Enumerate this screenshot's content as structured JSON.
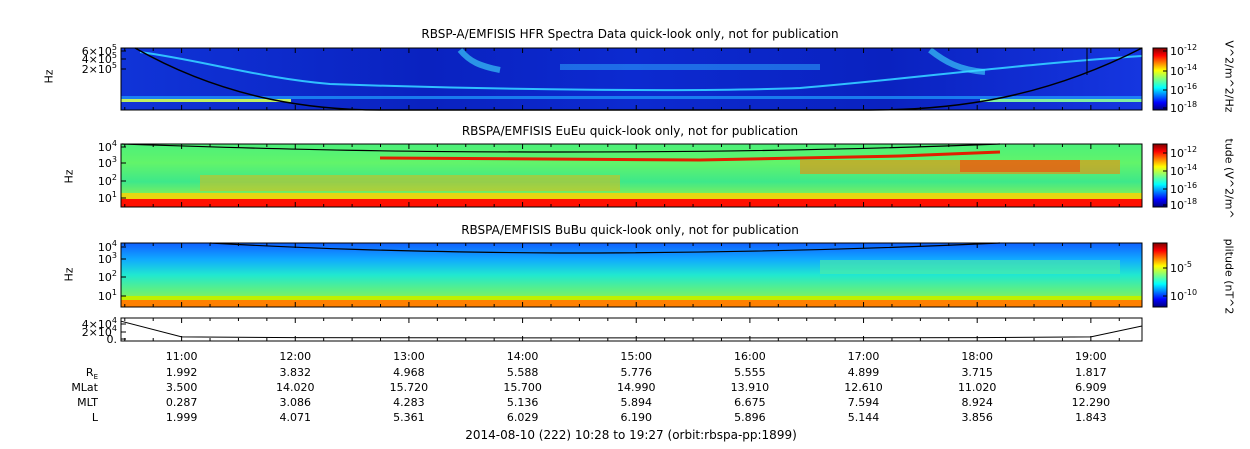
{
  "chart_data": [
    {
      "type": "heatmap",
      "title": "RBSP-A/EMFISIS  HFR Spectra Data quick-look only, not for publication",
      "ylabel": "Hz",
      "y_ticks": [
        {
          "value": 600000,
          "label": "6×10",
          "exp": "5"
        },
        {
          "value": 400000,
          "label": "4×10",
          "exp": "5"
        },
        {
          "value": 200000,
          "label": "2×10",
          "exp": "5"
        }
      ],
      "colorbar_label": "V^2/m^2/Hz",
      "colorbar_ticks": [
        {
          "label": "10",
          "exp": "-12"
        },
        {
          "label": "10",
          "exp": "-14"
        },
        {
          "label": "10",
          "exp": "-16"
        },
        {
          "label": "10",
          "exp": "-18"
        }
      ],
      "log_scale": false
    },
    {
      "type": "heatmap",
      "title": "RBSPA/EMFISIS  EuEu quick-look only, not for publication",
      "ylabel": "Hz",
      "y_ticks": [
        {
          "value": 10000,
          "label": "10",
          "exp": "4"
        },
        {
          "value": 1000,
          "label": "10",
          "exp": "3"
        },
        {
          "value": 100,
          "label": "10",
          "exp": "2"
        },
        {
          "value": 10,
          "label": "10",
          "exp": "1"
        }
      ],
      "colorbar_label": "tude (V^2/m^",
      "colorbar_ticks": [
        {
          "label": "10",
          "exp": "-12"
        },
        {
          "label": "10",
          "exp": "-14"
        },
        {
          "label": "10",
          "exp": "-16"
        },
        {
          "label": "10",
          "exp": "-18"
        }
      ],
      "log_scale": true
    },
    {
      "type": "heatmap",
      "title": "RBSPA/EMFISIS  BuBu quick-look only, not for publication",
      "ylabel": "Hz",
      "y_ticks": [
        {
          "value": 10000,
          "label": "10",
          "exp": "4"
        },
        {
          "value": 1000,
          "label": "10",
          "exp": "3"
        },
        {
          "value": 100,
          "label": "10",
          "exp": "2"
        },
        {
          "value": 10,
          "label": "10",
          "exp": "1"
        }
      ],
      "colorbar_label": "plitude (nT^2",
      "colorbar_ticks": [
        {
          "label": "10",
          "exp": "-5"
        },
        {
          "label": "10",
          "exp": "-10"
        }
      ],
      "log_scale": true
    },
    {
      "type": "line",
      "y_ticks": [
        {
          "value": 40000,
          "label": "4×10",
          "exp": "4"
        },
        {
          "value": 20000,
          "label": "2×10",
          "exp": "4"
        },
        {
          "value": 0,
          "label": "0.",
          "exp": ""
        }
      ],
      "x": [
        "10:28",
        "11:00",
        "12:00",
        "13:00",
        "14:00",
        "15:00",
        "16:00",
        "17:00",
        "18:00",
        "19:00",
        "19:27"
      ],
      "values": [
        42000,
        2800,
        900,
        400,
        250,
        200,
        250,
        400,
        900,
        2800,
        30000
      ]
    }
  ],
  "time_axis": {
    "ticks": [
      "11:00",
      "12:00",
      "13:00",
      "14:00",
      "15:00",
      "16:00",
      "17:00",
      "18:00",
      "19:00"
    ],
    "start_hour": 10.4667,
    "end_hour": 19.45
  },
  "ephemeris": {
    "rows": [
      {
        "label": "R",
        "sub": "E",
        "values": [
          "1.992",
          "3.832",
          "4.968",
          "5.588",
          "5.776",
          "5.555",
          "4.899",
          "3.715",
          "1.817"
        ]
      },
      {
        "label": "MLat",
        "sub": "",
        "values": [
          "3.500",
          "14.020",
          "15.720",
          "15.700",
          "14.990",
          "13.910",
          "12.610",
          "11.020",
          "6.909"
        ]
      },
      {
        "label": "MLT",
        "sub": "",
        "values": [
          "0.287",
          "3.086",
          "4.283",
          "5.136",
          "5.894",
          "6.675",
          "7.594",
          "8.924",
          "12.290"
        ]
      },
      {
        "label": "L",
        "sub": "",
        "values": [
          "1.999",
          "4.071",
          "5.361",
          "6.029",
          "6.190",
          "5.896",
          "5.144",
          "3.856",
          "1.843"
        ]
      }
    ]
  },
  "footer": "2014-08-10 (222) 10:28 to 19:27 (orbit:rbspa-pp:1899)",
  "colors": {
    "jet": [
      "#00007f",
      "#0000ff",
      "#007fff",
      "#00ffff",
      "#7fff7f",
      "#ffff00",
      "#ff7f00",
      "#ff0000",
      "#7f0000"
    ],
    "plasmapause_line": "#000000"
  }
}
